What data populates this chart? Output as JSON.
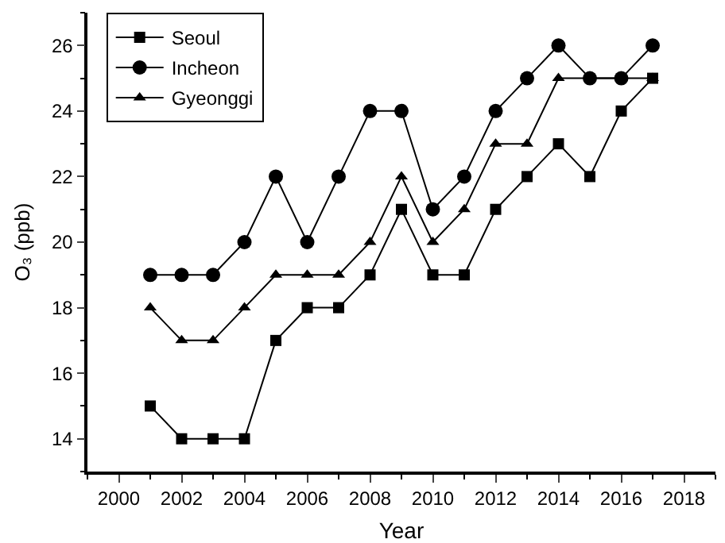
{
  "chart_data": {
    "type": "line",
    "xlabel": "Year",
    "ylabel": "O₃ (ppb)",
    "x": [
      2001,
      2002,
      2003,
      2004,
      2005,
      2006,
      2007,
      2008,
      2009,
      2010,
      2011,
      2012,
      2013,
      2014,
      2015,
      2016,
      2017
    ],
    "series": [
      {
        "name": "Seoul",
        "color": "#000000",
        "marker": "square",
        "values": [
          15,
          14,
          14,
          14,
          17,
          18,
          18,
          19,
          21,
          19,
          19,
          21,
          22,
          23,
          22,
          24,
          25
        ]
      },
      {
        "name": "Incheon",
        "color": "#000000",
        "marker": "circle",
        "values": [
          19,
          19,
          19,
          20,
          22,
          20,
          22,
          24,
          24,
          21,
          22,
          24,
          25,
          26,
          25,
          25,
          26
        ]
      },
      {
        "name": "Gyeonggi",
        "color": "#000000",
        "marker": "triangle",
        "values": [
          18,
          17,
          17,
          18,
          19,
          19,
          19,
          20,
          22,
          20,
          21,
          23,
          23,
          25,
          25,
          25,
          25
        ]
      }
    ],
    "xlim": [
      1999,
      2019
    ],
    "xticks": [
      2000,
      2002,
      2004,
      2006,
      2008,
      2010,
      2012,
      2014,
      2016,
      2018
    ],
    "ylim": [
      13,
      27
    ],
    "yticks": [
      14,
      16,
      18,
      20,
      22,
      24,
      26
    ],
    "grid": false,
    "legend": "top left",
    "line_style": "solid"
  }
}
